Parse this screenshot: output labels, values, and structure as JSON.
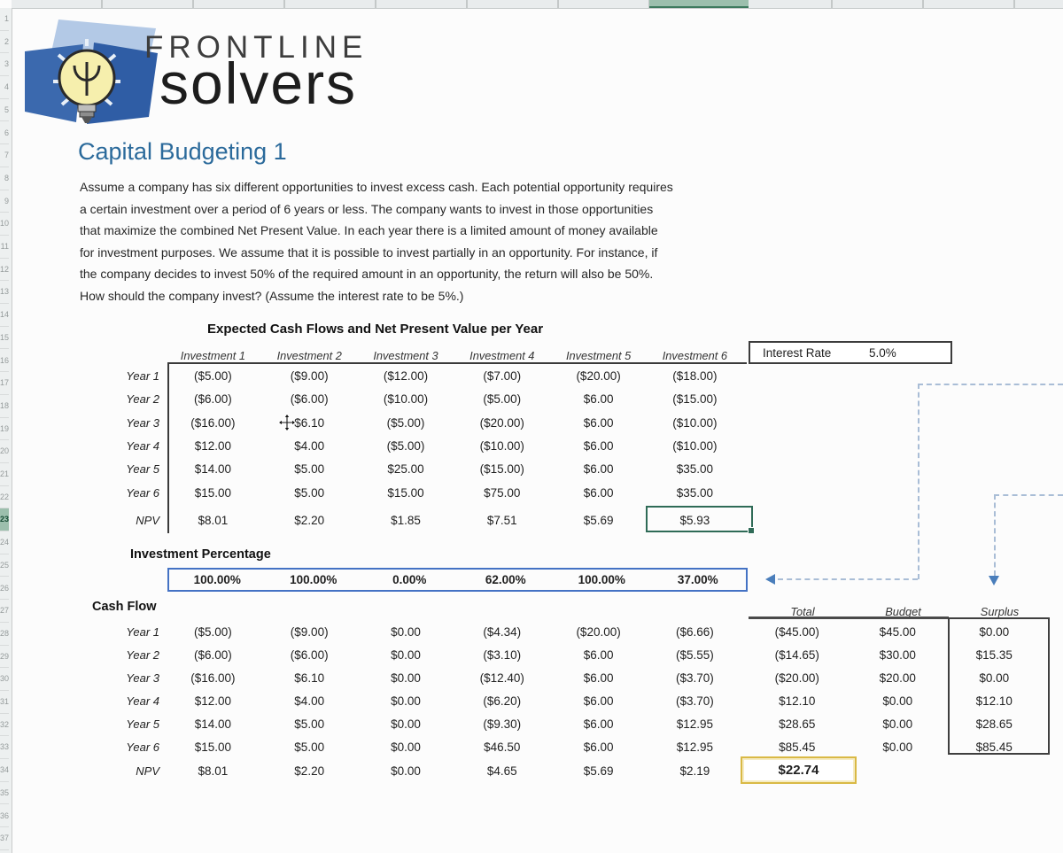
{
  "logo": {
    "brand_top": "FRONTLINE",
    "brand_bottom": "solvers"
  },
  "title": "Capital Budgeting 1",
  "description_lines": [
    "Assume a company has six different opportunities to invest excess cash. Each potential opportunity requires",
    "a certain investment over a period of 6 years or less. The company wants to invest in those opportunities",
    "that maximize the combined Net Present Value. In each year there is a limited amount of money available",
    "for investment purposes. We assume that it is possible to invest partially in an opportunity. For instance, if",
    "the company decides to invest 50% of the required amount in an opportunity, the return will also be 50%.",
    "How should the company invest? (Assume the interest rate to be 5%.)"
  ],
  "interest_rate": {
    "label": "Interest Rate",
    "value": "5.0%"
  },
  "table1": {
    "title": "Expected Cash Flows and Net Present Value per Year",
    "col_headers": [
      "Investment 1",
      "Investment 2",
      "Investment 3",
      "Investment 4",
      "Investment 5",
      "Investment 6"
    ],
    "rows": [
      {
        "label": "Year 1",
        "values": [
          "($5.00)",
          "($9.00)",
          "($12.00)",
          "($7.00)",
          "($20.00)",
          "($18.00)"
        ]
      },
      {
        "label": "Year 2",
        "values": [
          "($6.00)",
          "($6.00)",
          "($10.00)",
          "($5.00)",
          "$6.00",
          "($15.00)"
        ]
      },
      {
        "label": "Year 3",
        "values": [
          "($16.00)",
          "$6.10",
          "($5.00)",
          "($20.00)",
          "$6.00",
          "($10.00)"
        ]
      },
      {
        "label": "Year 4",
        "values": [
          "$12.00",
          "$4.00",
          "($5.00)",
          "($10.00)",
          "$6.00",
          "($10.00)"
        ]
      },
      {
        "label": "Year 5",
        "values": [
          "$14.00",
          "$5.00",
          "$25.00",
          "($15.00)",
          "$6.00",
          "$35.00"
        ]
      },
      {
        "label": "Year 6",
        "values": [
          "$15.00",
          "$5.00",
          "$15.00",
          "$75.00",
          "$6.00",
          "$35.00"
        ]
      }
    ],
    "npv_row": {
      "label": "NPV",
      "values": [
        "$8.01",
        "$2.20",
        "$1.85",
        "$7.51",
        "$5.69",
        "$5.93"
      ]
    },
    "selected_cell_value": "$5.93"
  },
  "investment_percentage": {
    "label": "Investment Percentage",
    "values": [
      "100.00%",
      "100.00%",
      "0.00%",
      "62.00%",
      "100.00%",
      "37.00%"
    ]
  },
  "cash_flow": {
    "label": "Cash Flow",
    "extra_headers": [
      "Total",
      "Budget",
      "Surplus"
    ],
    "rows": [
      {
        "label": "Year 1",
        "values": [
          "($5.00)",
          "($9.00)",
          "$0.00",
          "($4.34)",
          "($20.00)",
          "($6.66)"
        ],
        "total": "($45.00)",
        "budget": "$45.00",
        "surplus": "$0.00"
      },
      {
        "label": "Year 2",
        "values": [
          "($6.00)",
          "($6.00)",
          "$0.00",
          "($3.10)",
          "$6.00",
          "($5.55)"
        ],
        "total": "($14.65)",
        "budget": "$30.00",
        "surplus": "$15.35"
      },
      {
        "label": "Year 3",
        "values": [
          "($16.00)",
          "$6.10",
          "$0.00",
          "($12.40)",
          "$6.00",
          "($3.70)"
        ],
        "total": "($20.00)",
        "budget": "$20.00",
        "surplus": "$0.00"
      },
      {
        "label": "Year 4",
        "values": [
          "$12.00",
          "$4.00",
          "$0.00",
          "($6.20)",
          "$6.00",
          "($3.70)"
        ],
        "total": "$12.10",
        "budget": "$0.00",
        "surplus": "$12.10"
      },
      {
        "label": "Year 5",
        "values": [
          "$14.00",
          "$5.00",
          "$0.00",
          "($9.30)",
          "$6.00",
          "$12.95"
        ],
        "total": "$28.65",
        "budget": "$0.00",
        "surplus": "$28.65"
      },
      {
        "label": "Year 6",
        "values": [
          "$15.00",
          "$5.00",
          "$0.00",
          "$46.50",
          "$6.00",
          "$12.95"
        ],
        "total": "$85.45",
        "budget": "$0.00",
        "surplus": "$85.45"
      }
    ],
    "npv_row": {
      "label": "NPV",
      "values": [
        "$8.01",
        "$2.20",
        "$0.00",
        "$4.65",
        "$5.69",
        "$2.19"
      ],
      "total": "$22.74"
    }
  },
  "excel": {
    "row_numbers": [
      1,
      2,
      3,
      4,
      5,
      6,
      7,
      8,
      9,
      10,
      11,
      12,
      13,
      14,
      15,
      16,
      17,
      18,
      19,
      20,
      21,
      22,
      23,
      24,
      25,
      26,
      27,
      28,
      29,
      30,
      31,
      32,
      33,
      34,
      35,
      36,
      37
    ],
    "selected_row": 23
  },
  "colors": {
    "accent_blue": "#4472c4",
    "selection_green": "#2f6b57",
    "gold": "#d9b945",
    "title_blue": "#2b6a9b",
    "dashed_line": "#a9bdd6"
  }
}
